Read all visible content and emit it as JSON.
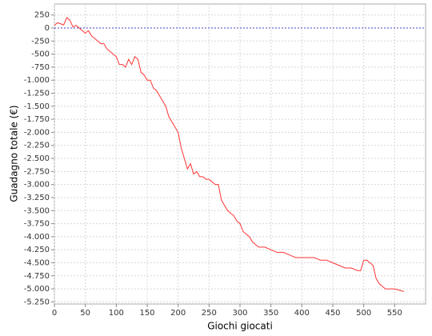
{
  "chart_data": {
    "type": "line",
    "x_label": "Giochi giocati",
    "y_label": "Guadagno totale  (€)",
    "xlim": [
      0,
      600
    ],
    "ylim": [
      -5290,
      460
    ],
    "xticks": [
      0,
      50,
      100,
      150,
      200,
      250,
      300,
      350,
      400,
      450,
      500,
      550
    ],
    "yticks": [
      250,
      0,
      -250,
      -500,
      -750,
      {
        "value": -1000,
        "label": "-1.000"
      },
      {
        "value": -1250,
        "label": "-1.250"
      },
      {
        "value": -1500,
        "label": "-1.500"
      },
      {
        "value": -1750,
        "label": "-1.750"
      },
      {
        "value": -2000,
        "label": "-2.000"
      },
      {
        "value": -2250,
        "label": "-2.250"
      },
      {
        "value": -2500,
        "label": "-2.500"
      },
      {
        "value": -2750,
        "label": "-2.750"
      },
      {
        "value": -3000,
        "label": "-3.000"
      },
      {
        "value": -3250,
        "label": "-3.250"
      },
      {
        "value": -3500,
        "label": "-3.500"
      },
      {
        "value": -3750,
        "label": "-3.750"
      },
      {
        "value": -4000,
        "label": "-4.000"
      },
      {
        "value": -4250,
        "label": "-4.250"
      },
      {
        "value": -4500,
        "label": "-4.500"
      },
      {
        "value": -4750,
        "label": "-4.750"
      },
      {
        "value": -5000,
        "label": "-5.000"
      },
      {
        "value": -5250,
        "label": "-5.250"
      }
    ],
    "grid": true,
    "baseline": 0,
    "baseline_color": "#4040c0",
    "x": [
      0,
      5,
      10,
      15,
      20,
      25,
      30,
      35,
      40,
      45,
      50,
      55,
      60,
      65,
      70,
      75,
      80,
      85,
      90,
      95,
      100,
      105,
      110,
      115,
      120,
      125,
      130,
      135,
      140,
      145,
      150,
      155,
      160,
      165,
      170,
      175,
      180,
      185,
      190,
      195,
      200,
      205,
      210,
      215,
      220,
      225,
      230,
      235,
      240,
      245,
      250,
      255,
      260,
      265,
      270,
      275,
      280,
      285,
      290,
      295,
      300,
      305,
      310,
      315,
      320,
      325,
      330,
      340,
      350,
      360,
      370,
      380,
      390,
      400,
      410,
      420,
      430,
      440,
      450,
      460,
      470,
      480,
      490,
      495,
      500,
      505,
      510,
      515,
      520,
      525,
      530,
      535,
      540,
      545,
      550,
      565
    ],
    "series": [
      {
        "color": "#ff3333",
        "values": [
          50,
          100,
          80,
          60,
          200,
          150,
          20,
          50,
          0,
          -50,
          -100,
          -50,
          -150,
          -200,
          -250,
          -300,
          -300,
          -400,
          -450,
          -500,
          -550,
          -700,
          -700,
          -750,
          -600,
          -700,
          -550,
          -600,
          -850,
          -900,
          -1000,
          -1000,
          -1150,
          -1200,
          -1300,
          -1400,
          -1500,
          -1700,
          -1800,
          -1900,
          -2000,
          -2300,
          -2500,
          -2700,
          -2600,
          -2800,
          -2750,
          -2850,
          -2850,
          -2900,
          -2900,
          -2950,
          -3000,
          -3000,
          -3300,
          -3400,
          -3500,
          -3550,
          -3600,
          -3700,
          -3750,
          -3900,
          -3950,
          -4000,
          -4100,
          -4150,
          -4200,
          -4200,
          -4250,
          -4300,
          -4300,
          -4350,
          -4400,
          -4400,
          -4400,
          -4400,
          -4450,
          -4450,
          -4500,
          -4550,
          -4600,
          -4600,
          -4650,
          -4650,
          -4450,
          -4450,
          -4500,
          -4550,
          -4800,
          -4900,
          -4950,
          -5000,
          -5000,
          -5000,
          -5000,
          -5050
        ]
      }
    ]
  }
}
